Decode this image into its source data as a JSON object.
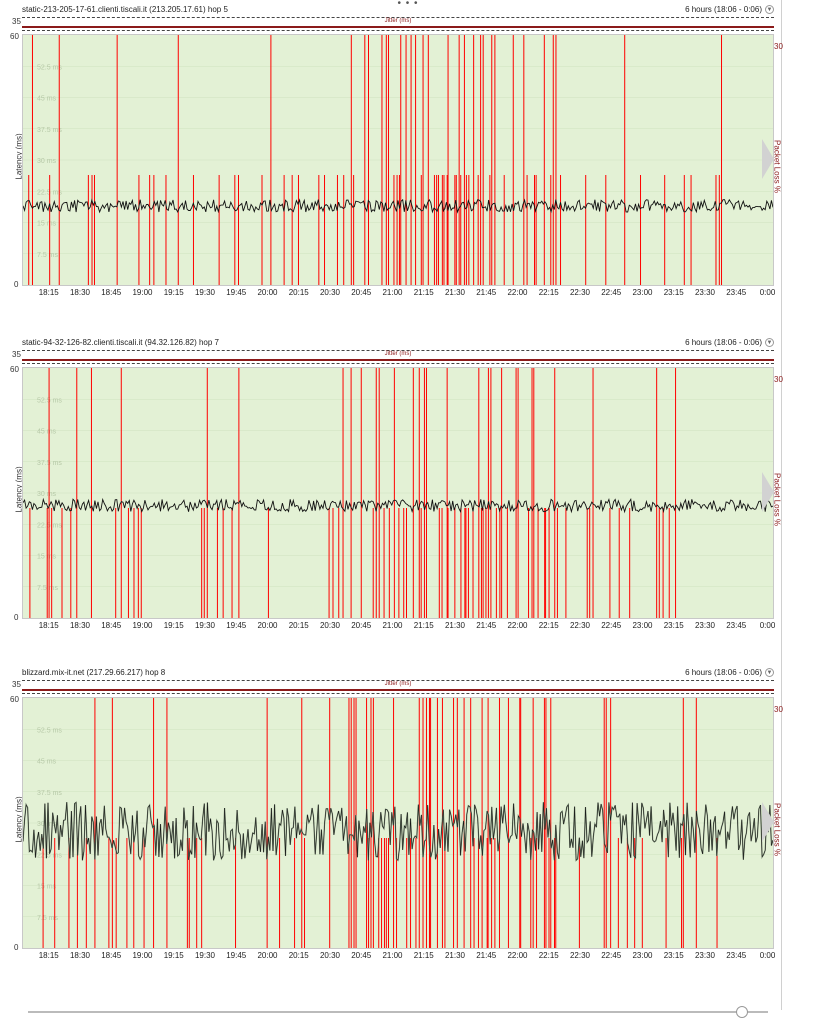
{
  "window": {
    "more_label": "• • •"
  },
  "panels": [
    {
      "host": "static-213-205-17-61.clienti.tiscali.it (213.205.17.61) hop 5",
      "time_range": "6 hours (18:06 - 0:06)",
      "jitter_label": "Jitter (ms)",
      "jitter_max": "35",
      "y_max": "60",
      "y_min": "0",
      "y_title": "Latency (ms)",
      "y_ticks": [
        "52.5 ms",
        "45 ms",
        "37.5 ms",
        "30 ms",
        "22.5 ms",
        "15 ms",
        "7.5 ms"
      ],
      "pl_max": "30",
      "pl_title": "Packet Loss %",
      "latency_base_ms": 19,
      "latency_noise_ms": 1.5,
      "loss_seed": 7,
      "loss_start_frac": 0.0,
      "loss_end_frac": 0.94
    },
    {
      "host": "static-94-32-126-82.clienti.tiscali.it (94.32.126.82) hop 7",
      "time_range": "6 hours (18:06 - 0:06)",
      "jitter_label": "Jitter (ms)",
      "jitter_max": "35",
      "y_max": "60",
      "y_min": "0",
      "y_title": "Latency (ms)",
      "y_ticks": [
        "52.5 ms",
        "45 ms",
        "37.5 ms",
        "30 ms",
        "22.5 ms",
        "15 ms",
        "7.5 ms"
      ],
      "pl_max": "30",
      "pl_title": "Packet Loss %",
      "latency_base_ms": 27,
      "latency_noise_ms": 1.5,
      "loss_seed": 13,
      "loss_start_frac": 0.0,
      "loss_end_frac": 0.88
    },
    {
      "host": "blizzard.mix-it.net (217.29.66.217) hop 8",
      "time_range": "6 hours (18:06 - 0:06)",
      "jitter_label": "Jitter (ms)",
      "jitter_max": "35",
      "y_max": "60",
      "y_min": "0",
      "y_title": "Latency (ms)",
      "y_ticks": [
        "52.5 ms",
        "45 ms",
        "37.5 ms",
        "30 ms",
        "22.5 ms",
        "15 ms",
        "7.5 ms"
      ],
      "pl_max": "30",
      "pl_title": "Packet Loss %",
      "latency_base_ms": 28,
      "latency_noise_ms": 7,
      "loss_seed": 29,
      "loss_start_frac": 0.0,
      "loss_end_frac": 0.93
    }
  ],
  "x_ticks": [
    "18:15",
    "18:30",
    "18:45",
    "19:00",
    "19:15",
    "19:30",
    "19:45",
    "20:00",
    "20:15",
    "20:30",
    "20:45",
    "21:00",
    "21:15",
    "21:30",
    "21:45",
    "22:00",
    "22:15",
    "22:30",
    "22:45",
    "23:00",
    "23:15",
    "23:30",
    "23:45",
    "0:00"
  ],
  "x_ticks_minutes": [
    9,
    24,
    39,
    54,
    69,
    84,
    99,
    114,
    129,
    144,
    159,
    174,
    189,
    204,
    219,
    234,
    249,
    264,
    279,
    294,
    309,
    324,
    339,
    354
  ],
  "x_total_minutes": 360,
  "colors": {
    "plot_bg": "#e3f1d5",
    "loss": "#ff0000",
    "latency": "#111111",
    "jitter": "#8b1a1a",
    "latency_fill": "#6f7f6a"
  },
  "slider": {
    "value_pct": 97
  }
}
